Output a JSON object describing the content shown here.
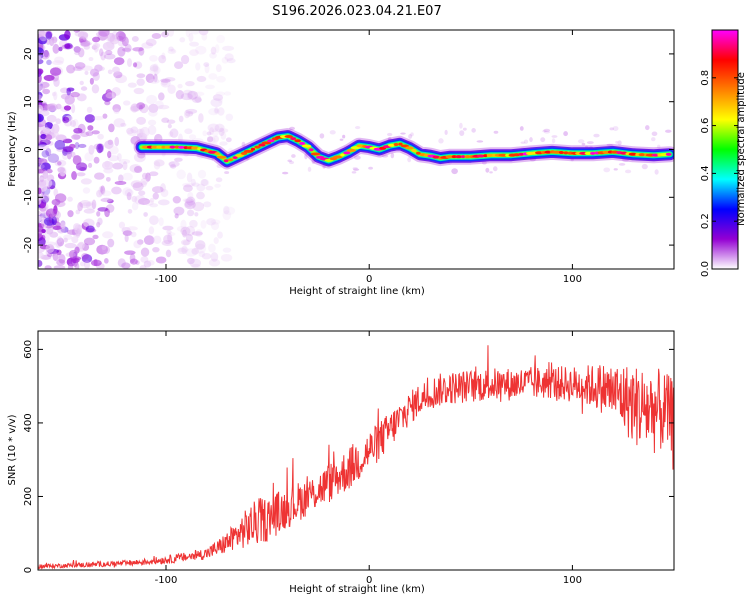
{
  "figure_title": "S196.2026.023.04.21.E07",
  "chart_data": [
    {
      "type": "heatmap",
      "xlabel": "Height of straight line (km)",
      "ylabel": "Frequency (Hz)",
      "xlim": [
        -163,
        150
      ],
      "ylim": [
        -25,
        25
      ],
      "xticks": [
        -100,
        0,
        100
      ],
      "yticks": [
        -20,
        -10,
        0,
        10,
        20
      ],
      "colorbar": {
        "label": "Normalized spectral amplitude",
        "range": [
          0,
          1
        ],
        "ticks": [
          "0.0",
          "0.2",
          "0.4",
          "0.6",
          "0.8"
        ],
        "colors": [
          "#ffffff",
          "#9400d3",
          "#0000ff",
          "#00ffff",
          "#00ff00",
          "#ffff00",
          "#ff7f00",
          "#ff0000",
          "#ff00ff"
        ]
      },
      "ridge": {
        "x": [
          -112,
          -105,
          -95,
          -85,
          -75,
          -70,
          -65,
          -60,
          -55,
          -50,
          -45,
          -40,
          -35,
          -30,
          -25,
          -20,
          -15,
          -10,
          -5,
          0,
          5,
          10,
          15,
          20,
          25,
          30,
          35,
          40,
          50,
          60,
          70,
          80,
          90,
          100,
          110,
          120,
          130,
          140,
          148
        ],
        "y": [
          0.5,
          0.5,
          0.5,
          0.3,
          -0.8,
          -2.5,
          -1.5,
          -0.5,
          0.5,
          1.5,
          2.5,
          2.8,
          1.8,
          0.5,
          -1.5,
          -2.3,
          -1.5,
          -0.5,
          0.8,
          0.5,
          0.0,
          0.8,
          1.2,
          0.3,
          -1.0,
          -1.3,
          -1.8,
          -1.5,
          -1.5,
          -1.2,
          -1.2,
          -0.8,
          -0.5,
          -0.8,
          -0.8,
          -0.5,
          -1.0,
          -1.2,
          -1.0
        ]
      },
      "noise_region": {
        "x": [
          -163,
          -80
        ],
        "amplitude": "low"
      }
    },
    {
      "type": "line",
      "xlabel": "Height of straight line (km)",
      "ylabel": "SNR (10 * v/v)",
      "xlim": [
        -163,
        150
      ],
      "ylim": [
        0,
        650
      ],
      "xticks": [
        -100,
        0,
        100
      ],
      "yticks": [
        0,
        200,
        400,
        600
      ],
      "series": [
        {
          "color": "#ee3333",
          "x": [
            -163,
            -150,
            -140,
            -130,
            -120,
            -110,
            -100,
            -90,
            -80,
            -75,
            -70,
            -65,
            -60,
            -55,
            -50,
            -45,
            -40,
            -35,
            -30,
            -25,
            -20,
            -15,
            -10,
            -5,
            0,
            5,
            10,
            15,
            20,
            25,
            30,
            35,
            40,
            50,
            60,
            70,
            80,
            90,
            100,
            110,
            115,
            120,
            125,
            130,
            135,
            140,
            145,
            150
          ],
          "y": [
            10,
            12,
            14,
            16,
            18,
            22,
            28,
            35,
            45,
            58,
            75,
            95,
            115,
            130,
            140,
            155,
            170,
            185,
            200,
            218,
            235,
            255,
            275,
            300,
            325,
            350,
            380,
            410,
            440,
            465,
            480,
            490,
            495,
            500,
            505,
            505,
            508,
            510,
            505,
            500,
            495,
            485,
            470,
            450,
            440,
            435,
            430,
            420
          ],
          "noise": [
            6,
            6,
            7,
            7,
            8,
            9,
            11,
            13,
            16,
            22,
            30,
            40,
            55,
            65,
            60,
            60,
            55,
            55,
            50,
            50,
            55,
            55,
            60,
            60,
            55,
            55,
            50,
            50,
            45,
            45,
            45,
            45,
            45,
            45,
            45,
            45,
            45,
            45,
            50,
            60,
            70,
            80,
            95,
            110,
            120,
            120,
            110,
            100
          ]
        }
      ]
    }
  ]
}
